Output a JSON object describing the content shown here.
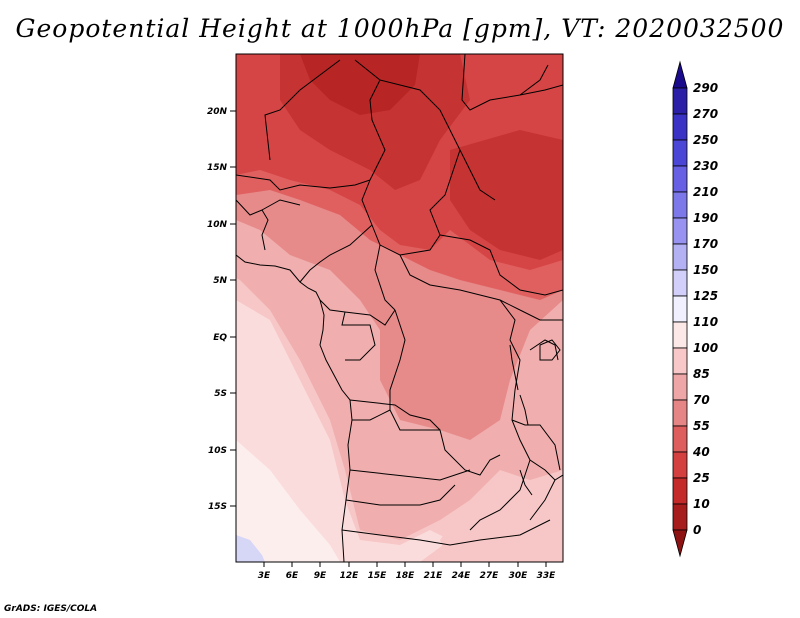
{
  "title": "Geopotential Height at 1000hPa [gpm], VT: 2020032500",
  "credit": "GrADS: IGES/COLA",
  "axes": {
    "lat_labels": [
      "20N",
      "15N",
      "10N",
      "5N",
      "EQ",
      "5S",
      "10S",
      "15S"
    ],
    "lon_labels": [
      "3E",
      "6E",
      "9E",
      "12E",
      "15E",
      "18E",
      "21E",
      "24E",
      "27E",
      "30E",
      "33E"
    ]
  },
  "colorbar": {
    "levels": [
      "290",
      "270",
      "250",
      "230",
      "210",
      "190",
      "170",
      "150",
      "125",
      "110",
      "100",
      "85",
      "70",
      "55",
      "40",
      "25",
      "10",
      "0"
    ],
    "colors": [
      "#1a0a8c",
      "#2b1fa8",
      "#3a32c4",
      "#4c46d6",
      "#6760e4",
      "#7d78ea",
      "#9892f0",
      "#b4b0f4",
      "#d2d0fa",
      "#f0f0fe",
      "#fde8e8",
      "#f8c8c8",
      "#eea6a6",
      "#e68585",
      "#de5d5d",
      "#d43f3f",
      "#c42a2a",
      "#a71c1c",
      "#8e1212"
    ]
  },
  "field_colors": {
    "darkest": "#b82525",
    "dark": "#d64545",
    "medium_dark": "#e06060",
    "medium": "#e78a8a",
    "light_medium": "#f0aeae",
    "light": "#f7c6c6",
    "pale": "#fbdcdc",
    "palest": "#fdeeee",
    "blue": "#d6d6f6"
  }
}
